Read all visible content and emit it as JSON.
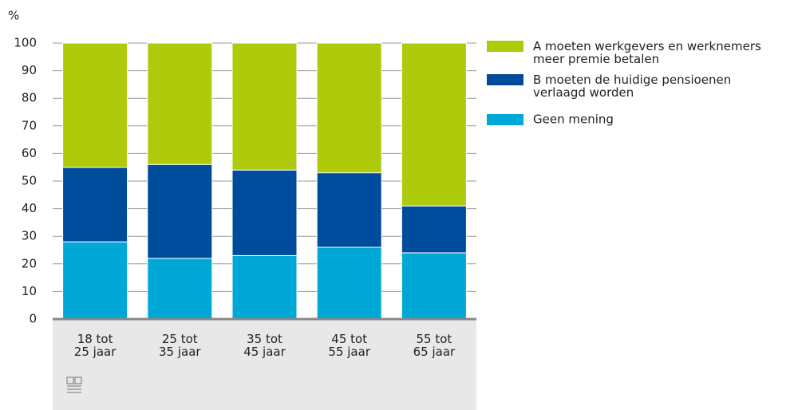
{
  "chart_data": {
    "type": "stacked_bar",
    "y_label": "%",
    "categories": [
      "18 tot\n25 jaar",
      "25 tot\n35 jaar",
      "35 tot\n45 jaar",
      "45 tot\n55 jaar",
      "55 tot\n65 jaar"
    ],
    "series": [
      {
        "name": "A moeten werkgevers en werknemers\nmeer premie betalen",
        "color": "#afca0b",
        "values": [
          45,
          44,
          46,
          47,
          59
        ]
      },
      {
        "name": "B moeten de huidige pensioenen\nverlaagd worden",
        "color": "#004c9c",
        "values": [
          27,
          34,
          31,
          27,
          17
        ]
      },
      {
        "name": "Geen mening",
        "color": "#00a8d8",
        "values": [
          28,
          22,
          23,
          26,
          24
        ]
      }
    ],
    "ylim": [
      0,
      100
    ],
    "yticks": [
      0,
      10,
      20,
      30,
      40,
      50,
      60,
      70,
      80,
      90,
      100
    ],
    "grid": true
  }
}
